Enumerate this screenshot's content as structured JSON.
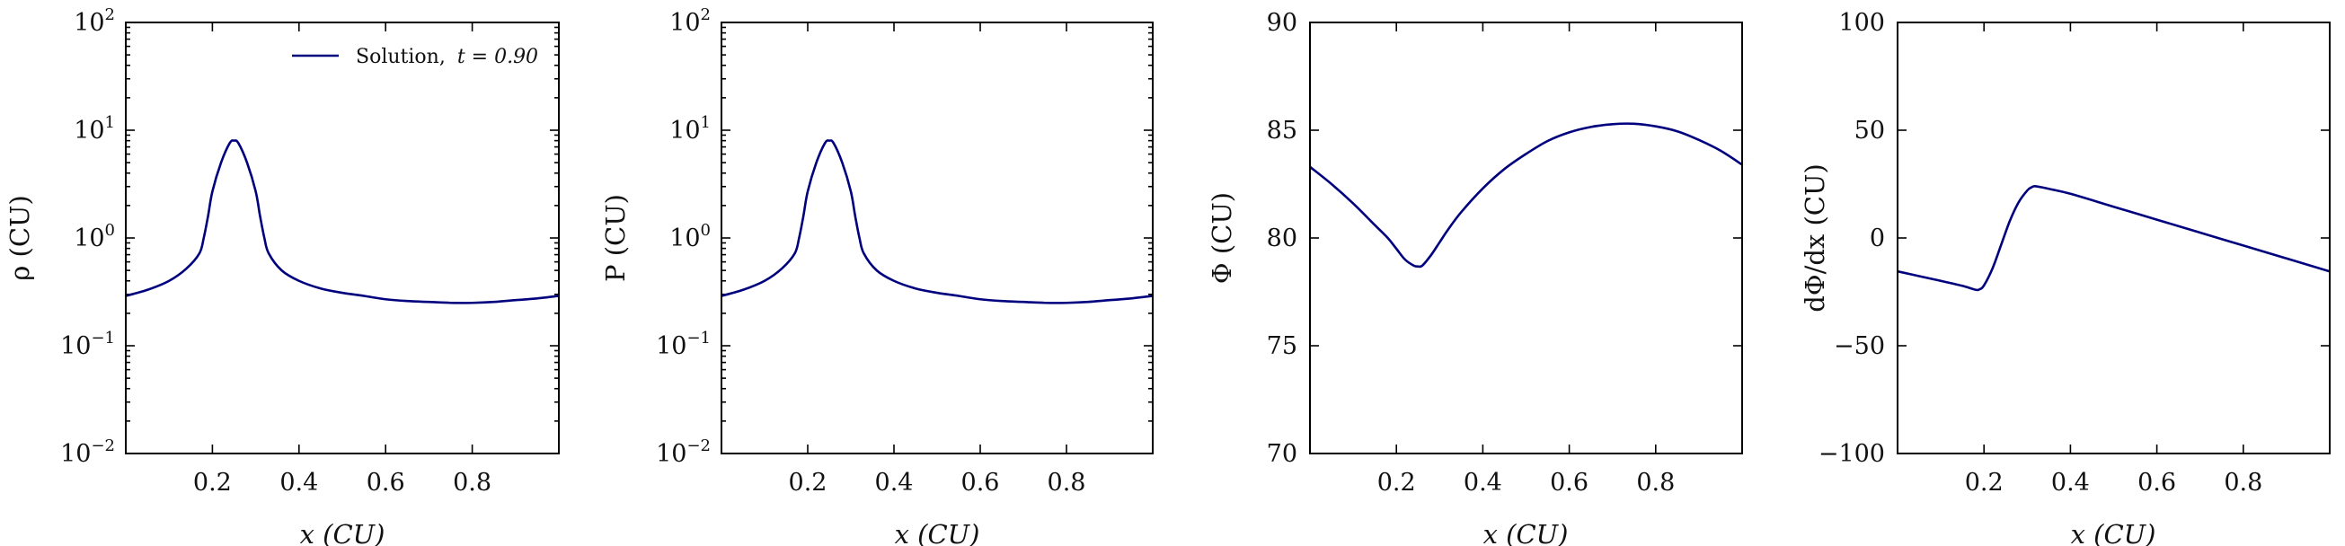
{
  "colors": {
    "line": "#00007e",
    "axes": "#000000"
  },
  "legend": {
    "label": "Solution,",
    "time": "t = 0.90",
    "location": "upper-right"
  },
  "chart_data": [
    {
      "type": "line",
      "yscale": "log",
      "xlim": [
        0.0,
        1.0
      ],
      "ylim": [
        0.01,
        100
      ],
      "xlabel": "x (CU)",
      "ylabel": "ρ (CU)",
      "xticks": [
        0.2,
        0.4,
        0.6,
        0.8
      ],
      "xtick_labels": [
        "0.2",
        "0.4",
        "0.6",
        "0.8"
      ],
      "yticks": [
        0.01,
        0.1,
        1,
        10,
        100
      ],
      "ytick_labels": [
        {
          "base": "10",
          "exp": "−2"
        },
        {
          "base": "10",
          "exp": "−1"
        },
        {
          "base": "10",
          "exp": "0"
        },
        {
          "base": "10",
          "exp": "1"
        },
        {
          "base": "10",
          "exp": "2"
        }
      ],
      "series": [
        {
          "name": "Solution, t = 0.90",
          "x": [
            0.0,
            0.05,
            0.1,
            0.14,
            0.17,
            0.18,
            0.19,
            0.2,
            0.22,
            0.24,
            0.25,
            0.26,
            0.28,
            0.3,
            0.31,
            0.32,
            0.33,
            0.36,
            0.4,
            0.45,
            0.5,
            0.55,
            0.6,
            0.65,
            0.7,
            0.75,
            0.8,
            0.85,
            0.9,
            0.95,
            1.0
          ],
          "y": [
            0.29,
            0.33,
            0.4,
            0.52,
            0.72,
            1.0,
            1.6,
            2.7,
            5.0,
            7.6,
            8.0,
            7.6,
            5.0,
            2.7,
            1.6,
            1.0,
            0.72,
            0.5,
            0.4,
            0.34,
            0.31,
            0.29,
            0.27,
            0.26,
            0.255,
            0.25,
            0.25,
            0.255,
            0.265,
            0.275,
            0.29
          ]
        }
      ]
    },
    {
      "type": "line",
      "yscale": "log",
      "xlim": [
        0.0,
        1.0
      ],
      "ylim": [
        0.01,
        100
      ],
      "xlabel": "x (CU)",
      "ylabel": "P (CU)",
      "xticks": [
        0.2,
        0.4,
        0.6,
        0.8
      ],
      "xtick_labels": [
        "0.2",
        "0.4",
        "0.6",
        "0.8"
      ],
      "yticks": [
        0.01,
        0.1,
        1,
        10,
        100
      ],
      "ytick_labels": [
        {
          "base": "10",
          "exp": "−2"
        },
        {
          "base": "10",
          "exp": "−1"
        },
        {
          "base": "10",
          "exp": "0"
        },
        {
          "base": "10",
          "exp": "1"
        },
        {
          "base": "10",
          "exp": "2"
        }
      ],
      "series": [
        {
          "name": "Solution, t = 0.90",
          "x": [
            0.0,
            0.05,
            0.1,
            0.14,
            0.17,
            0.18,
            0.19,
            0.2,
            0.22,
            0.24,
            0.25,
            0.26,
            0.28,
            0.3,
            0.31,
            0.32,
            0.33,
            0.36,
            0.4,
            0.45,
            0.5,
            0.55,
            0.6,
            0.65,
            0.7,
            0.75,
            0.8,
            0.85,
            0.9,
            0.95,
            1.0
          ],
          "y": [
            0.29,
            0.33,
            0.4,
            0.52,
            0.72,
            1.0,
            1.6,
            2.7,
            5.0,
            7.6,
            8.0,
            7.6,
            5.0,
            2.7,
            1.6,
            1.0,
            0.72,
            0.5,
            0.4,
            0.34,
            0.31,
            0.29,
            0.27,
            0.26,
            0.255,
            0.25,
            0.25,
            0.255,
            0.265,
            0.275,
            0.29
          ]
        }
      ]
    },
    {
      "type": "line",
      "yscale": "linear",
      "xlim": [
        0.0,
        1.0
      ],
      "ylim": [
        70,
        90
      ],
      "xlabel": "x (CU)",
      "ylabel": "Φ (CU)",
      "xticks": [
        0.2,
        0.4,
        0.6,
        0.8
      ],
      "xtick_labels": [
        "0.2",
        "0.4",
        "0.6",
        "0.8"
      ],
      "yticks": [
        70,
        75,
        80,
        85,
        90
      ],
      "ytick_labels": [
        "70",
        "75",
        "80",
        "85",
        "90"
      ],
      "series": [
        {
          "name": "Solution, t = 0.90",
          "x": [
            0.0,
            0.05,
            0.1,
            0.15,
            0.18,
            0.2,
            0.22,
            0.24,
            0.25,
            0.26,
            0.28,
            0.3,
            0.32,
            0.35,
            0.4,
            0.45,
            0.5,
            0.55,
            0.6,
            0.65,
            0.7,
            0.75,
            0.8,
            0.85,
            0.9,
            0.95,
            1.0
          ],
          "y": [
            83.3,
            82.5,
            81.6,
            80.6,
            80.0,
            79.5,
            79.0,
            78.72,
            78.68,
            78.72,
            79.2,
            79.8,
            80.4,
            81.2,
            82.3,
            83.2,
            83.9,
            84.5,
            84.9,
            85.15,
            85.28,
            85.3,
            85.18,
            84.95,
            84.55,
            84.05,
            83.4
          ]
        }
      ]
    },
    {
      "type": "line",
      "yscale": "linear",
      "xlim": [
        0.0,
        1.0
      ],
      "ylim": [
        -100,
        100
      ],
      "xlabel": "x (CU)",
      "ylabel": "dΦ/dx (CU)",
      "xticks": [
        0.2,
        0.4,
        0.6,
        0.8
      ],
      "xtick_labels": [
        "0.2",
        "0.4",
        "0.6",
        "0.8"
      ],
      "yticks": [
        -100,
        -50,
        0,
        50,
        100
      ],
      "ytick_labels": [
        "−100",
        "−50",
        "0",
        "50",
        "100"
      ],
      "series": [
        {
          "name": "Solution, t = 0.90",
          "x": [
            0.0,
            0.05,
            0.1,
            0.15,
            0.18,
            0.19,
            0.2,
            0.22,
            0.24,
            0.26,
            0.28,
            0.3,
            0.31,
            0.32,
            0.35,
            0.4,
            0.5,
            0.6,
            0.7,
            0.8,
            0.9,
            1.0
          ],
          "y": [
            -15.5,
            -17.7,
            -19.9,
            -22.2,
            -24.0,
            -23.8,
            -22.0,
            -14.0,
            -3.0,
            8.0,
            16.5,
            22.0,
            23.5,
            24.0,
            22.8,
            20.5,
            14.5,
            8.5,
            2.5,
            -3.5,
            -9.5,
            -15.5
          ]
        }
      ]
    }
  ]
}
